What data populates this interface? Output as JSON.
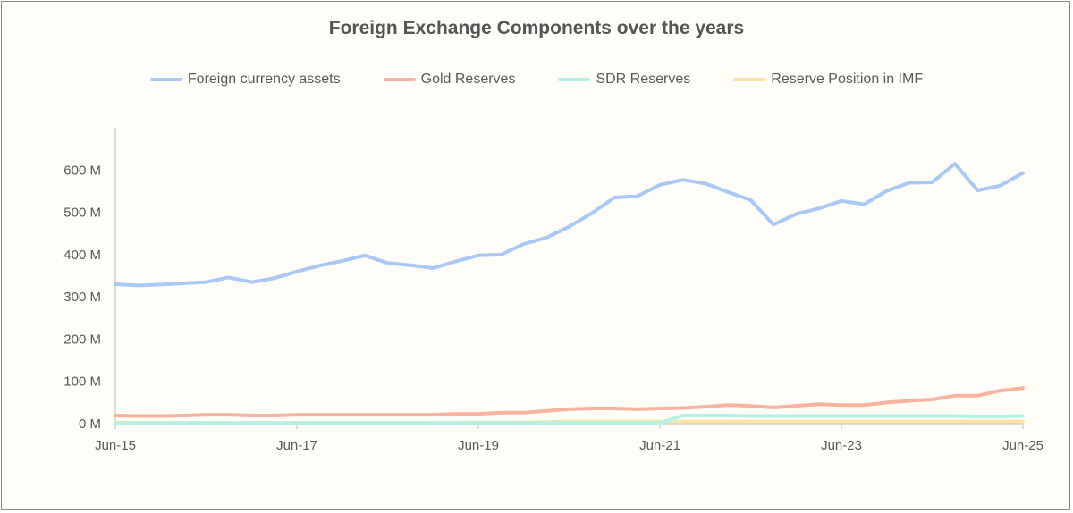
{
  "chart_data": {
    "type": "line",
    "title": "Foreign Exchange Components over the years",
    "xlabel": "",
    "ylabel": "",
    "ylim": [
      0,
      700
    ],
    "y_ticks": [
      0,
      100,
      200,
      300,
      400,
      500,
      600
    ],
    "y_tick_labels": [
      "0 M",
      "100 M",
      "200 M",
      "300 M",
      "400 M",
      "500 M",
      "600 M"
    ],
    "x_tick_labels": [
      "Jun-15",
      "Jun-17",
      "Jun-19",
      "Jun-21",
      "Jun-23",
      "Jun-25"
    ],
    "x_tick_index": [
      0,
      8,
      16,
      24,
      32,
      40
    ],
    "legend_position": "top",
    "grid": false,
    "series": [
      {
        "name": "Foreign currency assets",
        "color": "#a9c8f5",
        "values": [
          330,
          327,
          329,
          332,
          335,
          346,
          335,
          344,
          360,
          374,
          385,
          398,
          380,
          375,
          368,
          384,
          398,
          400,
          425,
          440,
          466,
          498,
          535,
          538,
          565,
          577,
          568,
          548,
          529,
          471,
          496,
          509,
          527,
          519,
          551,
          570,
          571,
          615,
          552,
          563,
          593
        ]
      },
      {
        "name": "Gold Reserves",
        "color": "#f7b3a0",
        "values": [
          19,
          18,
          18,
          19,
          21,
          21,
          19,
          19,
          21,
          21,
          21,
          21,
          21,
          21,
          21,
          23,
          23,
          26,
          26,
          30,
          34,
          36,
          36,
          34,
          36,
          37,
          40,
          44,
          42,
          38,
          42,
          46,
          44,
          44,
          50,
          54,
          57,
          66,
          66,
          78,
          84
        ]
      },
      {
        "name": "SDR Reserves",
        "color": "#b2f2e6",
        "values": [
          1.5,
          1.5,
          1.5,
          1.5,
          1.5,
          1.5,
          1.5,
          1.5,
          1.5,
          1.5,
          1.5,
          1.5,
          1.5,
          1.5,
          1.5,
          1.5,
          1.5,
          1.5,
          1.5,
          1.5,
          1.5,
          1.5,
          1.5,
          1.5,
          1.5,
          19,
          19,
          19,
          18,
          18,
          18,
          18,
          18,
          18,
          18,
          18,
          18,
          18,
          17,
          17,
          18
        ]
      },
      {
        "name": "Reserve Position in IMF",
        "color": "#fde3a7",
        "values": [
          3,
          2,
          2,
          2,
          2,
          2,
          2,
          2,
          2,
          2,
          2,
          2,
          2,
          2,
          2,
          2,
          3,
          3,
          3,
          4,
          5,
          5,
          5,
          5,
          5,
          5,
          5,
          5,
          5,
          5,
          5,
          5,
          5,
          5,
          5,
          5,
          5,
          5,
          5,
          5,
          5
        ]
      }
    ]
  }
}
